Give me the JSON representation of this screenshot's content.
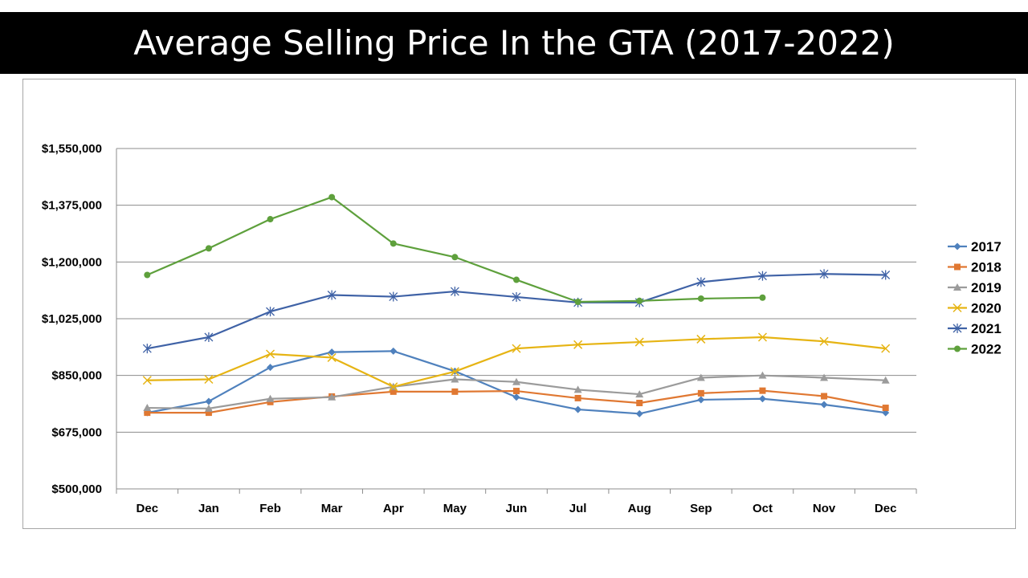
{
  "title": "Average Selling Price In the GTA (2017-2022)",
  "chart_data": {
    "type": "line",
    "title": "Average Selling Price In the GTA (2017-2022)",
    "xlabel": "",
    "ylabel": "",
    "categories": [
      "Dec",
      "Jan",
      "Feb",
      "Mar",
      "Apr",
      "May",
      "Jun",
      "Jul",
      "Aug",
      "Sep",
      "Oct",
      "Nov",
      "Dec"
    ],
    "ylim": [
      500000,
      1550000
    ],
    "yticks": [
      500000,
      675000,
      850000,
      1025000,
      1200000,
      1375000,
      1550000
    ],
    "ytick_labels": [
      "$500,000",
      "$675,000",
      "$850,000",
      "$1,025,000",
      "$1,200,000",
      "$1,375,000",
      "$1,550,000"
    ],
    "grid": true,
    "legend_position": "right",
    "series": [
      {
        "name": "2017",
        "color": "#4f81bd",
        "marker": "diamond",
        "values": [
          735000,
          770000,
          875000,
          922000,
          925000,
          863000,
          783000,
          745000,
          732000,
          775000,
          778000,
          760000,
          735000
        ]
      },
      {
        "name": "2018",
        "color": "#e07832",
        "marker": "square",
        "values": [
          735000,
          735000,
          768000,
          785000,
          800000,
          800000,
          802000,
          780000,
          765000,
          795000,
          803000,
          786000,
          750000
        ]
      },
      {
        "name": "2019",
        "color": "#9b9b9b",
        "marker": "triangle",
        "values": [
          750000,
          748000,
          778000,
          783000,
          815000,
          838000,
          830000,
          806000,
          792000,
          843000,
          850000,
          843000,
          835000
        ]
      },
      {
        "name": "2020",
        "color": "#e6b414",
        "marker": "x",
        "values": [
          835000,
          838000,
          916000,
          905000,
          815000,
          862000,
          933000,
          945000,
          953000,
          962000,
          968000,
          955000,
          933000
        ]
      },
      {
        "name": "2021",
        "color": "#3f62a6",
        "marker": "star",
        "values": [
          933000,
          968000,
          1047000,
          1098000,
          1093000,
          1109000,
          1092000,
          1075000,
          1075000,
          1138000,
          1157000,
          1163000,
          1160000
        ]
      },
      {
        "name": "2022",
        "color": "#5ea03c",
        "marker": "circle",
        "values": [
          1160000,
          1242000,
          1332000,
          1400000,
          1257000,
          1215000,
          1145000,
          1077000,
          1080000,
          1087000,
          1090000,
          null,
          null
        ]
      }
    ]
  }
}
